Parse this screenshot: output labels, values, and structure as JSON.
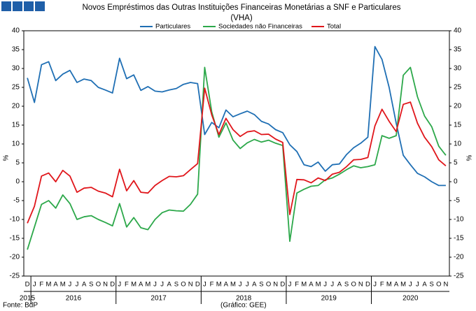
{
  "chart_data": {
    "type": "line",
    "title": "Novos Empréstimos das Outras Instituições Financeiras Monetárias a SNF e Particulares",
    "subtitle": "(VHA)",
    "y_label": "%",
    "source": "Fonte: BdP",
    "credit": "(Gráfico: GEE)",
    "categories": [
      "D",
      "J",
      "F",
      "M",
      "A",
      "M",
      "J",
      "J",
      "A",
      "S",
      "O",
      "N",
      "D",
      "J",
      "F",
      "M",
      "A",
      "M",
      "J",
      "J",
      "A",
      "S",
      "O",
      "N",
      "D",
      "J",
      "F",
      "M",
      "A",
      "M",
      "J",
      "J",
      "A",
      "S",
      "O",
      "N",
      "D",
      "J",
      "F",
      "M",
      "A",
      "M",
      "J",
      "J",
      "A",
      "S",
      "O",
      "N",
      "D",
      "J",
      "F",
      "M",
      "A",
      "M",
      "J",
      "J",
      "A",
      "S",
      "O",
      "N"
    ],
    "years": [
      "2015",
      "2016",
      "2017",
      "2018",
      "2019",
      "2020"
    ],
    "ylim": [
      -25,
      40
    ],
    "yticks": [
      -25,
      -20,
      -15,
      -10,
      -5,
      0,
      5,
      10,
      15,
      20,
      25,
      30,
      35,
      40
    ],
    "grid": false,
    "series": [
      {
        "name": "Particulares",
        "color": "#1f6fb4",
        "values": [
          27.5,
          21,
          31,
          31.8,
          26.8,
          28.5,
          29.5,
          26.3,
          27.2,
          26.8,
          25,
          24.3,
          23.5,
          32.7,
          27.3,
          28.3,
          24.2,
          25.2,
          24,
          23.8,
          24.3,
          24.7,
          25.8,
          26.3,
          26,
          12.5,
          15.7,
          14.3,
          19,
          17.2,
          18,
          18.7,
          17.8,
          16,
          15.3,
          13.8,
          13,
          9.8,
          8,
          4.5,
          4,
          5.2,
          2.8,
          4.5,
          4.7,
          7.2,
          9,
          10.2,
          11.8,
          35.8,
          32.4,
          25,
          15.5,
          7,
          4.5,
          2.2,
          1.3,
          0,
          -1,
          -1
        ]
      },
      {
        "name": "Sociedades não Financeiras",
        "color": "#2ca84a",
        "values": [
          -18,
          -12,
          -6,
          -5,
          -7,
          -3.5,
          -5.8,
          -10,
          -9.3,
          -9,
          -10,
          -10.8,
          -11.7,
          -5.8,
          -12,
          -9.5,
          -12.2,
          -12.7,
          -10,
          -8.2,
          -7.5,
          -7.7,
          -7.8,
          -6,
          -3.3,
          30.3,
          18.5,
          11.8,
          15.6,
          11,
          8.8,
          10.3,
          11.2,
          10.5,
          11,
          10.2,
          9.6,
          -15.8,
          -3,
          -2,
          -1.2,
          -1,
          0.5,
          1,
          2,
          3.2,
          4.2,
          3.7,
          4,
          4.5,
          12.2,
          11.5,
          12.2,
          28.2,
          30.3,
          22.5,
          17.4,
          14.6,
          9.4,
          7
        ]
      },
      {
        "name": "Total",
        "color": "#e0161b",
        "values": [
          -11,
          -6.5,
          1.5,
          2.3,
          0,
          3,
          1.5,
          -2.8,
          -1.7,
          -1.5,
          -2.5,
          -3,
          -4,
          3.3,
          -2.4,
          0.3,
          -2.8,
          -3,
          -1,
          0.3,
          1.4,
          1.3,
          1.6,
          3.2,
          4.8,
          24.8,
          17.7,
          12.5,
          16.8,
          13.8,
          12,
          13.2,
          13.5,
          12.5,
          12.6,
          11.3,
          10.4,
          -8.7,
          0.6,
          0.5,
          -0.3,
          1,
          0.3,
          2,
          2.5,
          4,
          5.8,
          5.9,
          6.4,
          14.8,
          19.2,
          16,
          13.3,
          20.5,
          21.1,
          15.5,
          11.8,
          9.3,
          5.8,
          4.2
        ]
      }
    ]
  }
}
